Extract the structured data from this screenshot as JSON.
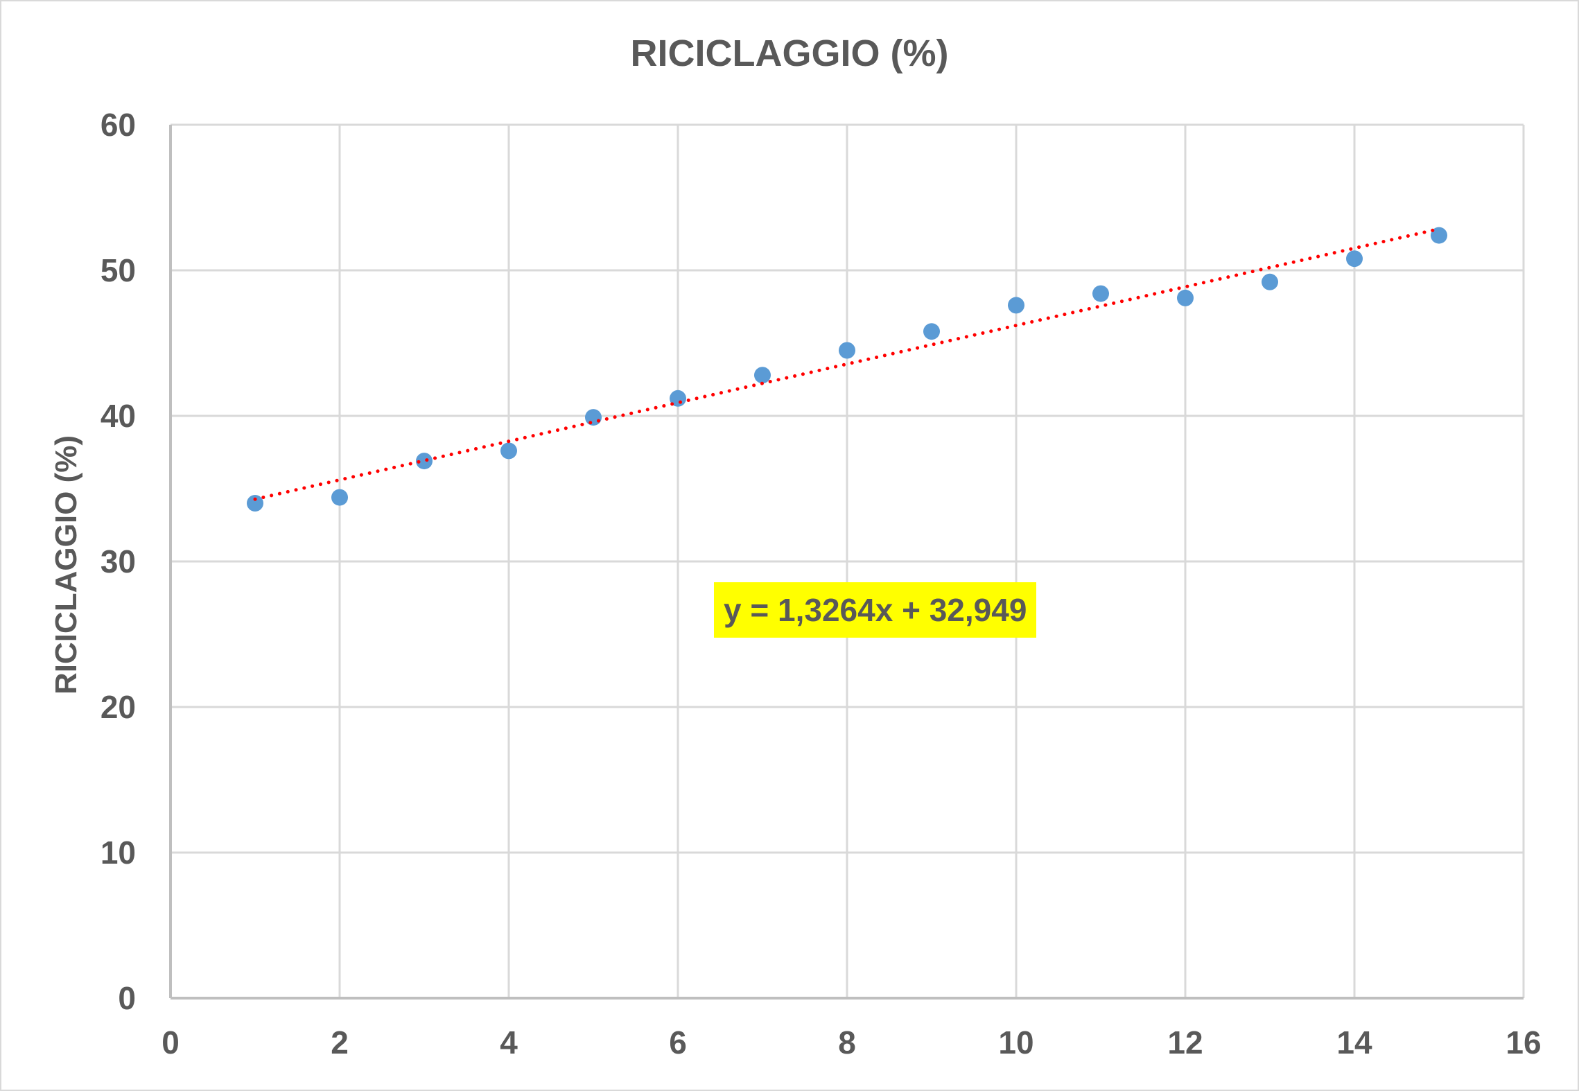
{
  "chart": {
    "title": "RICICLAGGIO (%)",
    "ylabel": "RICICLAGGIO (%)",
    "xlabel": "",
    "trendline_equation": "y = 1,3264x + 32,949"
  },
  "colors": {
    "marker": "#5b9bd5",
    "trendline": "#ff0000",
    "equation_bg": "#ffff00",
    "text": "#595959",
    "grid": "#d9d9d9"
  },
  "chart_data": {
    "type": "scatter",
    "title": "RICICLAGGIO (%)",
    "xlabel": "",
    "ylabel": "RICICLAGGIO (%)",
    "xlim": [
      0,
      16
    ],
    "ylim": [
      0,
      60
    ],
    "xticks": [
      0,
      2,
      4,
      6,
      8,
      10,
      12,
      14,
      16
    ],
    "yticks": [
      0,
      10,
      20,
      30,
      40,
      50,
      60
    ],
    "grid": true,
    "legend": "none",
    "series": [
      {
        "name": "RICICLAGGIO (%)",
        "x": [
          1,
          2,
          3,
          4,
          5,
          6,
          7,
          8,
          9,
          10,
          11,
          12,
          13,
          14,
          15
        ],
        "y": [
          34.0,
          34.4,
          36.9,
          37.6,
          39.9,
          41.2,
          42.8,
          44.5,
          45.8,
          47.6,
          48.4,
          48.1,
          49.2,
          50.8,
          52.4
        ]
      }
    ],
    "trendline": {
      "type": "linear",
      "slope": 1.3264,
      "intercept": 32.949,
      "x_range": [
        1,
        15
      ],
      "style": "dotted",
      "color": "#ff0000",
      "label": "y = 1,3264x + 32,949"
    }
  }
}
